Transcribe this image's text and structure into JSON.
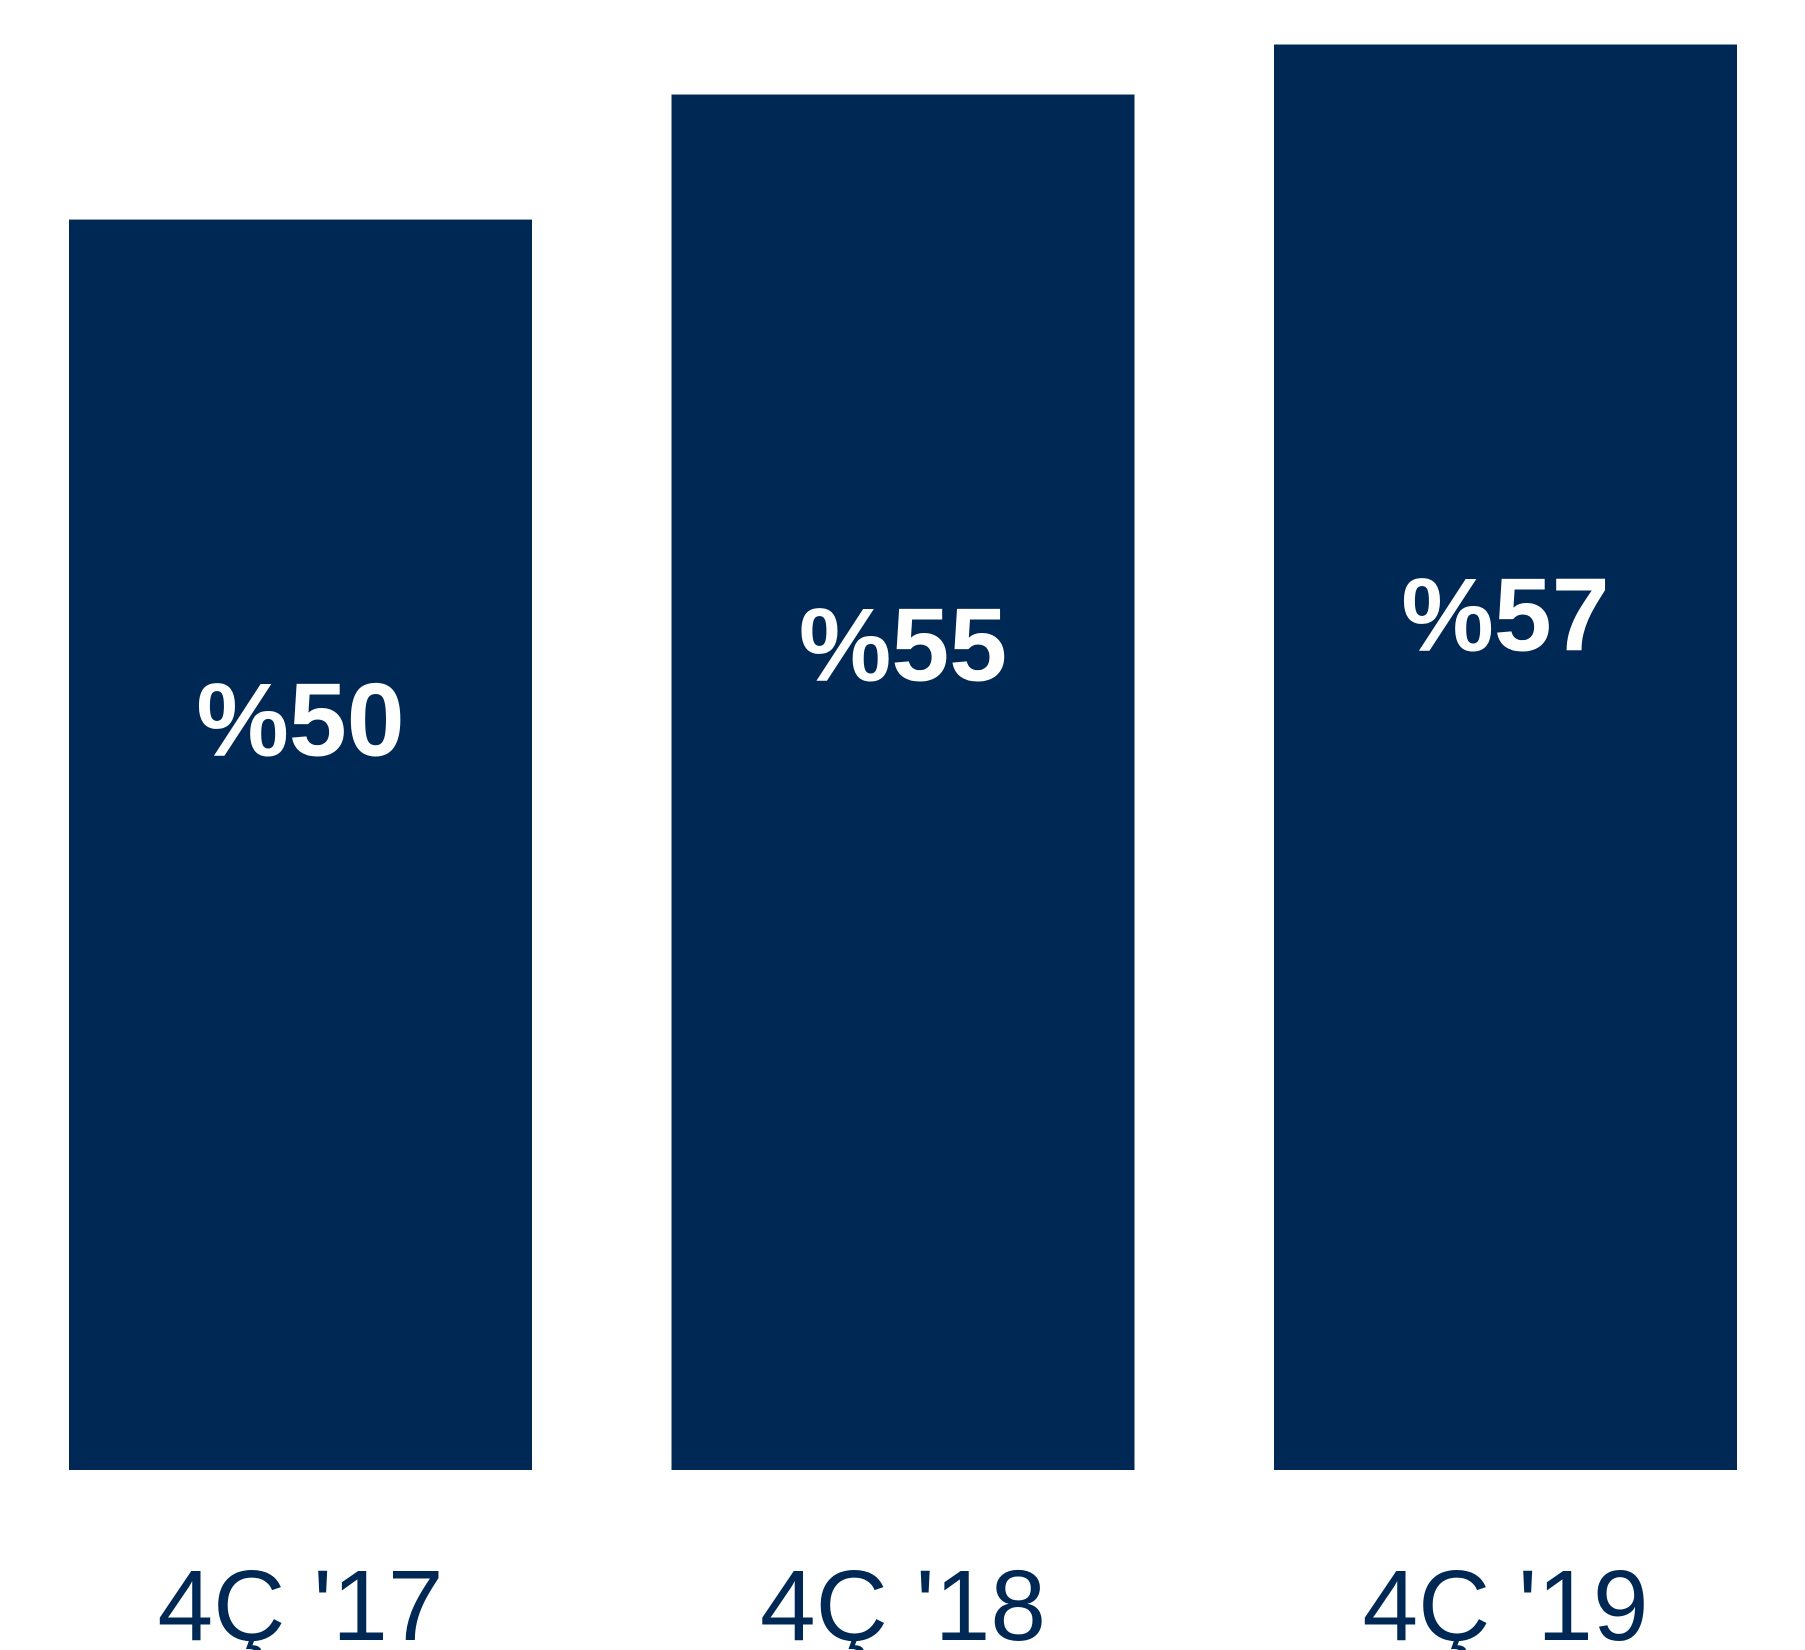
{
  "colors": {
    "bar": "#002855",
    "value_text": "#ffffff",
    "tick_text": "#002855",
    "background": "#ffffff"
  },
  "chart_data": {
    "type": "bar",
    "title": "",
    "xlabel": "",
    "ylabel": "",
    "categories": [
      "4Ç '17",
      "4Ç '18",
      "4Ç '19"
    ],
    "values": [
      50,
      55,
      57
    ],
    "data_labels": [
      "%50",
      "%55",
      "%57"
    ],
    "ylim": [
      0,
      57.9
    ],
    "grid": false,
    "legend": "none"
  }
}
